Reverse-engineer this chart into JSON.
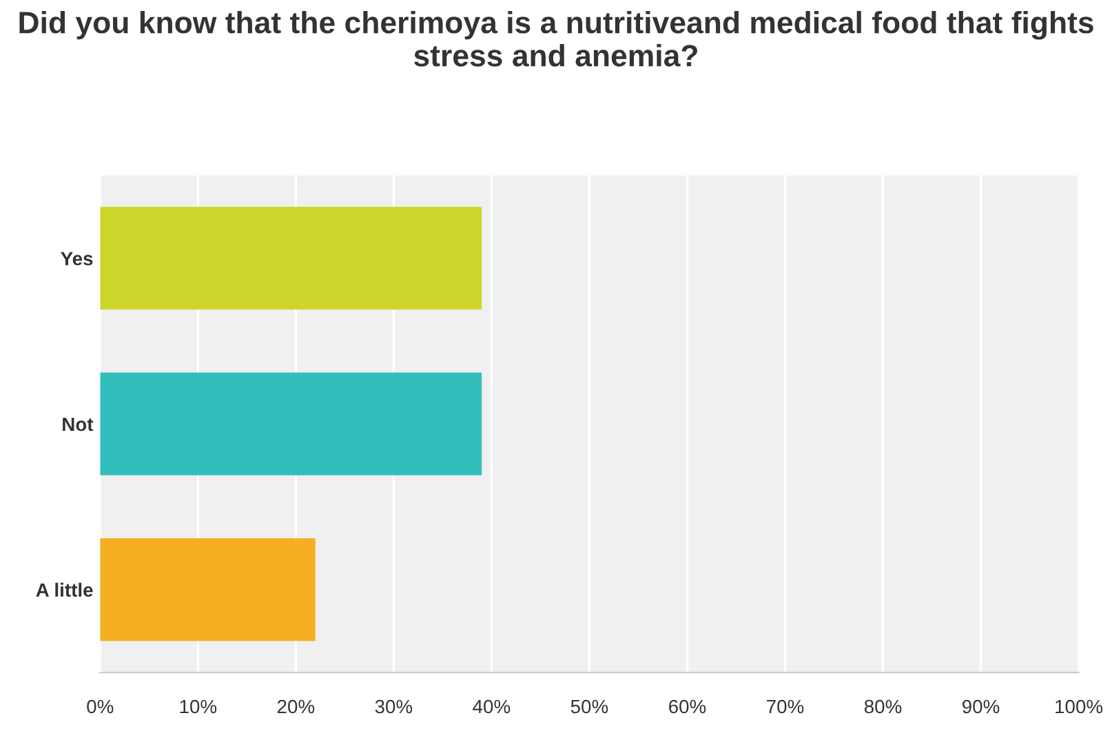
{
  "chart_data": {
    "type": "bar",
    "orientation": "horizontal",
    "title": "Did you know that the cherimoya is a nutritiveand medical food that fights stress and anemia?",
    "categories": [
      "Yes",
      "Not",
      "A little"
    ],
    "values": [
      39,
      39,
      22
    ],
    "colors": [
      "#cdd52a",
      "#33bebe",
      "#f6ae22"
    ],
    "xlim": [
      0,
      100
    ],
    "xticks": [
      {
        "value": 0,
        "label": "0%"
      },
      {
        "value": 10,
        "label": "10%"
      },
      {
        "value": 20,
        "label": "20%"
      },
      {
        "value": 30,
        "label": "30%"
      },
      {
        "value": 40,
        "label": "40%"
      },
      {
        "value": 50,
        "label": "50%"
      },
      {
        "value": 60,
        "label": "60%"
      },
      {
        "value": 70,
        "label": "70%"
      },
      {
        "value": 80,
        "label": "80%"
      },
      {
        "value": 90,
        "label": "90%"
      },
      {
        "value": 100,
        "label": "100%"
      }
    ],
    "grid": "x",
    "legend": false
  }
}
